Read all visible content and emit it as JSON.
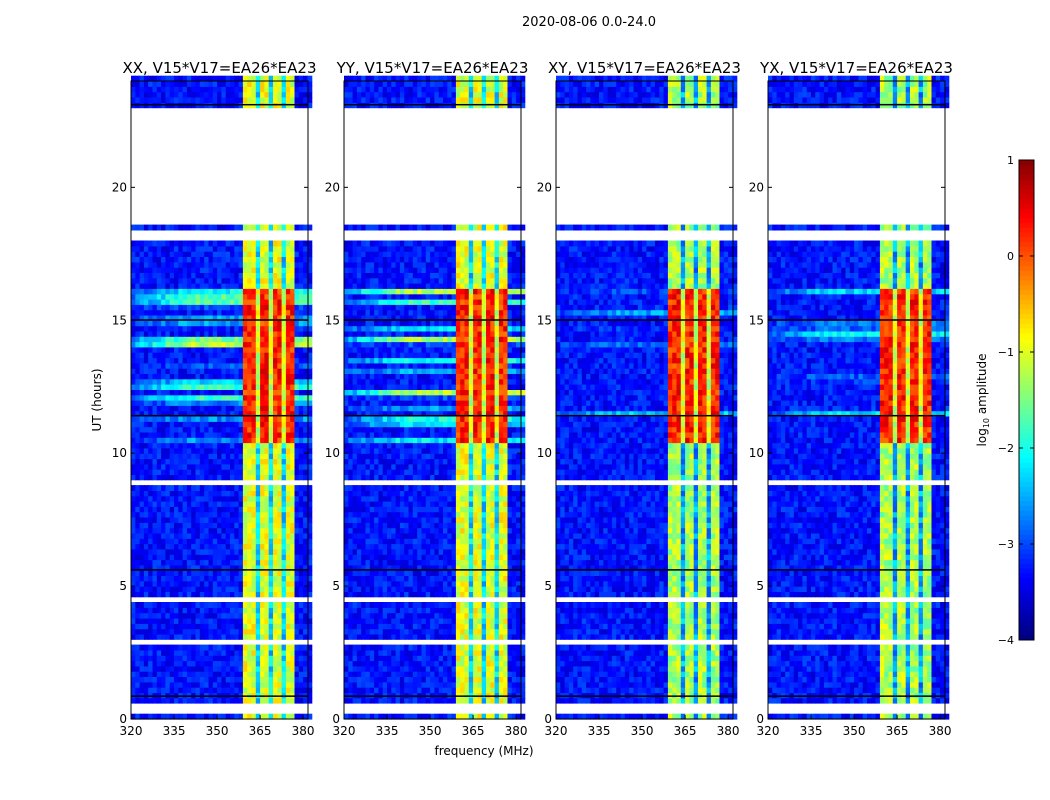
{
  "chart_data": {
    "type": "heatmap",
    "title": "2020-08-06 0.0-24.0",
    "xlabel": "frequency (MHz)",
    "ylabel": "UT (hours)",
    "xlim": [
      320,
      381.7
    ],
    "ylim": [
      0,
      24
    ],
    "xticks": [
      "320",
      "335",
      "350",
      "365",
      "380"
    ],
    "xtick_values": [
      320,
      335,
      350,
      365,
      380
    ],
    "yticks": [
      "0",
      "5",
      "10",
      "15",
      "20"
    ],
    "ytick_values": [
      0,
      5,
      10,
      15,
      20
    ],
    "colorbar": {
      "label": "log10 amplitude",
      "label_main": "log",
      "label_sub": "10",
      "label_rest": " amplitude",
      "range": [
        -4,
        1
      ],
      "ticks": [
        "1",
        "0",
        "−1",
        "−2",
        "−3",
        "−4"
      ],
      "tick_values": [
        1,
        0,
        -1,
        -2,
        -3,
        -4
      ],
      "colormap": "jet"
    },
    "panels": [
      {
        "title": "XX, V15*V17=EA26*EA23",
        "strong_background": true
      },
      {
        "title": "YY, V15*V17=EA26*EA23",
        "strong_background": true
      },
      {
        "title": "XY, V15*V17=EA26*EA23",
        "strong_background": false
      },
      {
        "title": "YX, V15*V17=EA26*EA23",
        "strong_background": false
      }
    ],
    "background_level": -3.3,
    "rfi_band_mhz": [
      359,
      377.5
    ],
    "rfi_level": -1.0,
    "rfi_channel_gaps_mhz": [
      363.9,
      368.4,
      373.0
    ],
    "active_period_hours": [
      10.4,
      16.2
    ],
    "active_rfi_level": 0.2,
    "active_background_level": -1.2,
    "flagged_hours": [
      [
        0.3,
        0.38
      ],
      [
        0.45,
        0.5
      ],
      [
        2.0,
        2.05
      ],
      [
        2.9,
        3.05
      ],
      [
        3.4,
        3.45
      ],
      [
        4.0,
        4.05
      ],
      [
        4.5,
        4.55
      ],
      [
        5.0,
        5.03
      ],
      [
        6.0,
        6.04
      ],
      [
        7.2,
        7.25
      ],
      [
        7.6,
        7.65
      ],
      [
        8.0,
        8.05
      ],
      [
        8.35,
        8.4
      ],
      [
        8.75,
        8.9
      ],
      [
        9.4,
        9.45
      ],
      [
        14.5,
        14.55
      ],
      [
        16.2,
        16.25
      ],
      [
        17.0,
        17.07
      ],
      [
        17.5,
        17.55
      ],
      [
        17.9,
        18.3
      ],
      [
        18.6,
        23.0
      ],
      [
        23.3,
        23.45
      ],
      [
        23.6,
        23.65
      ]
    ],
    "dark_hours": [
      0.85,
      5.6,
      11.4,
      15.0,
      23.1
    ]
  }
}
